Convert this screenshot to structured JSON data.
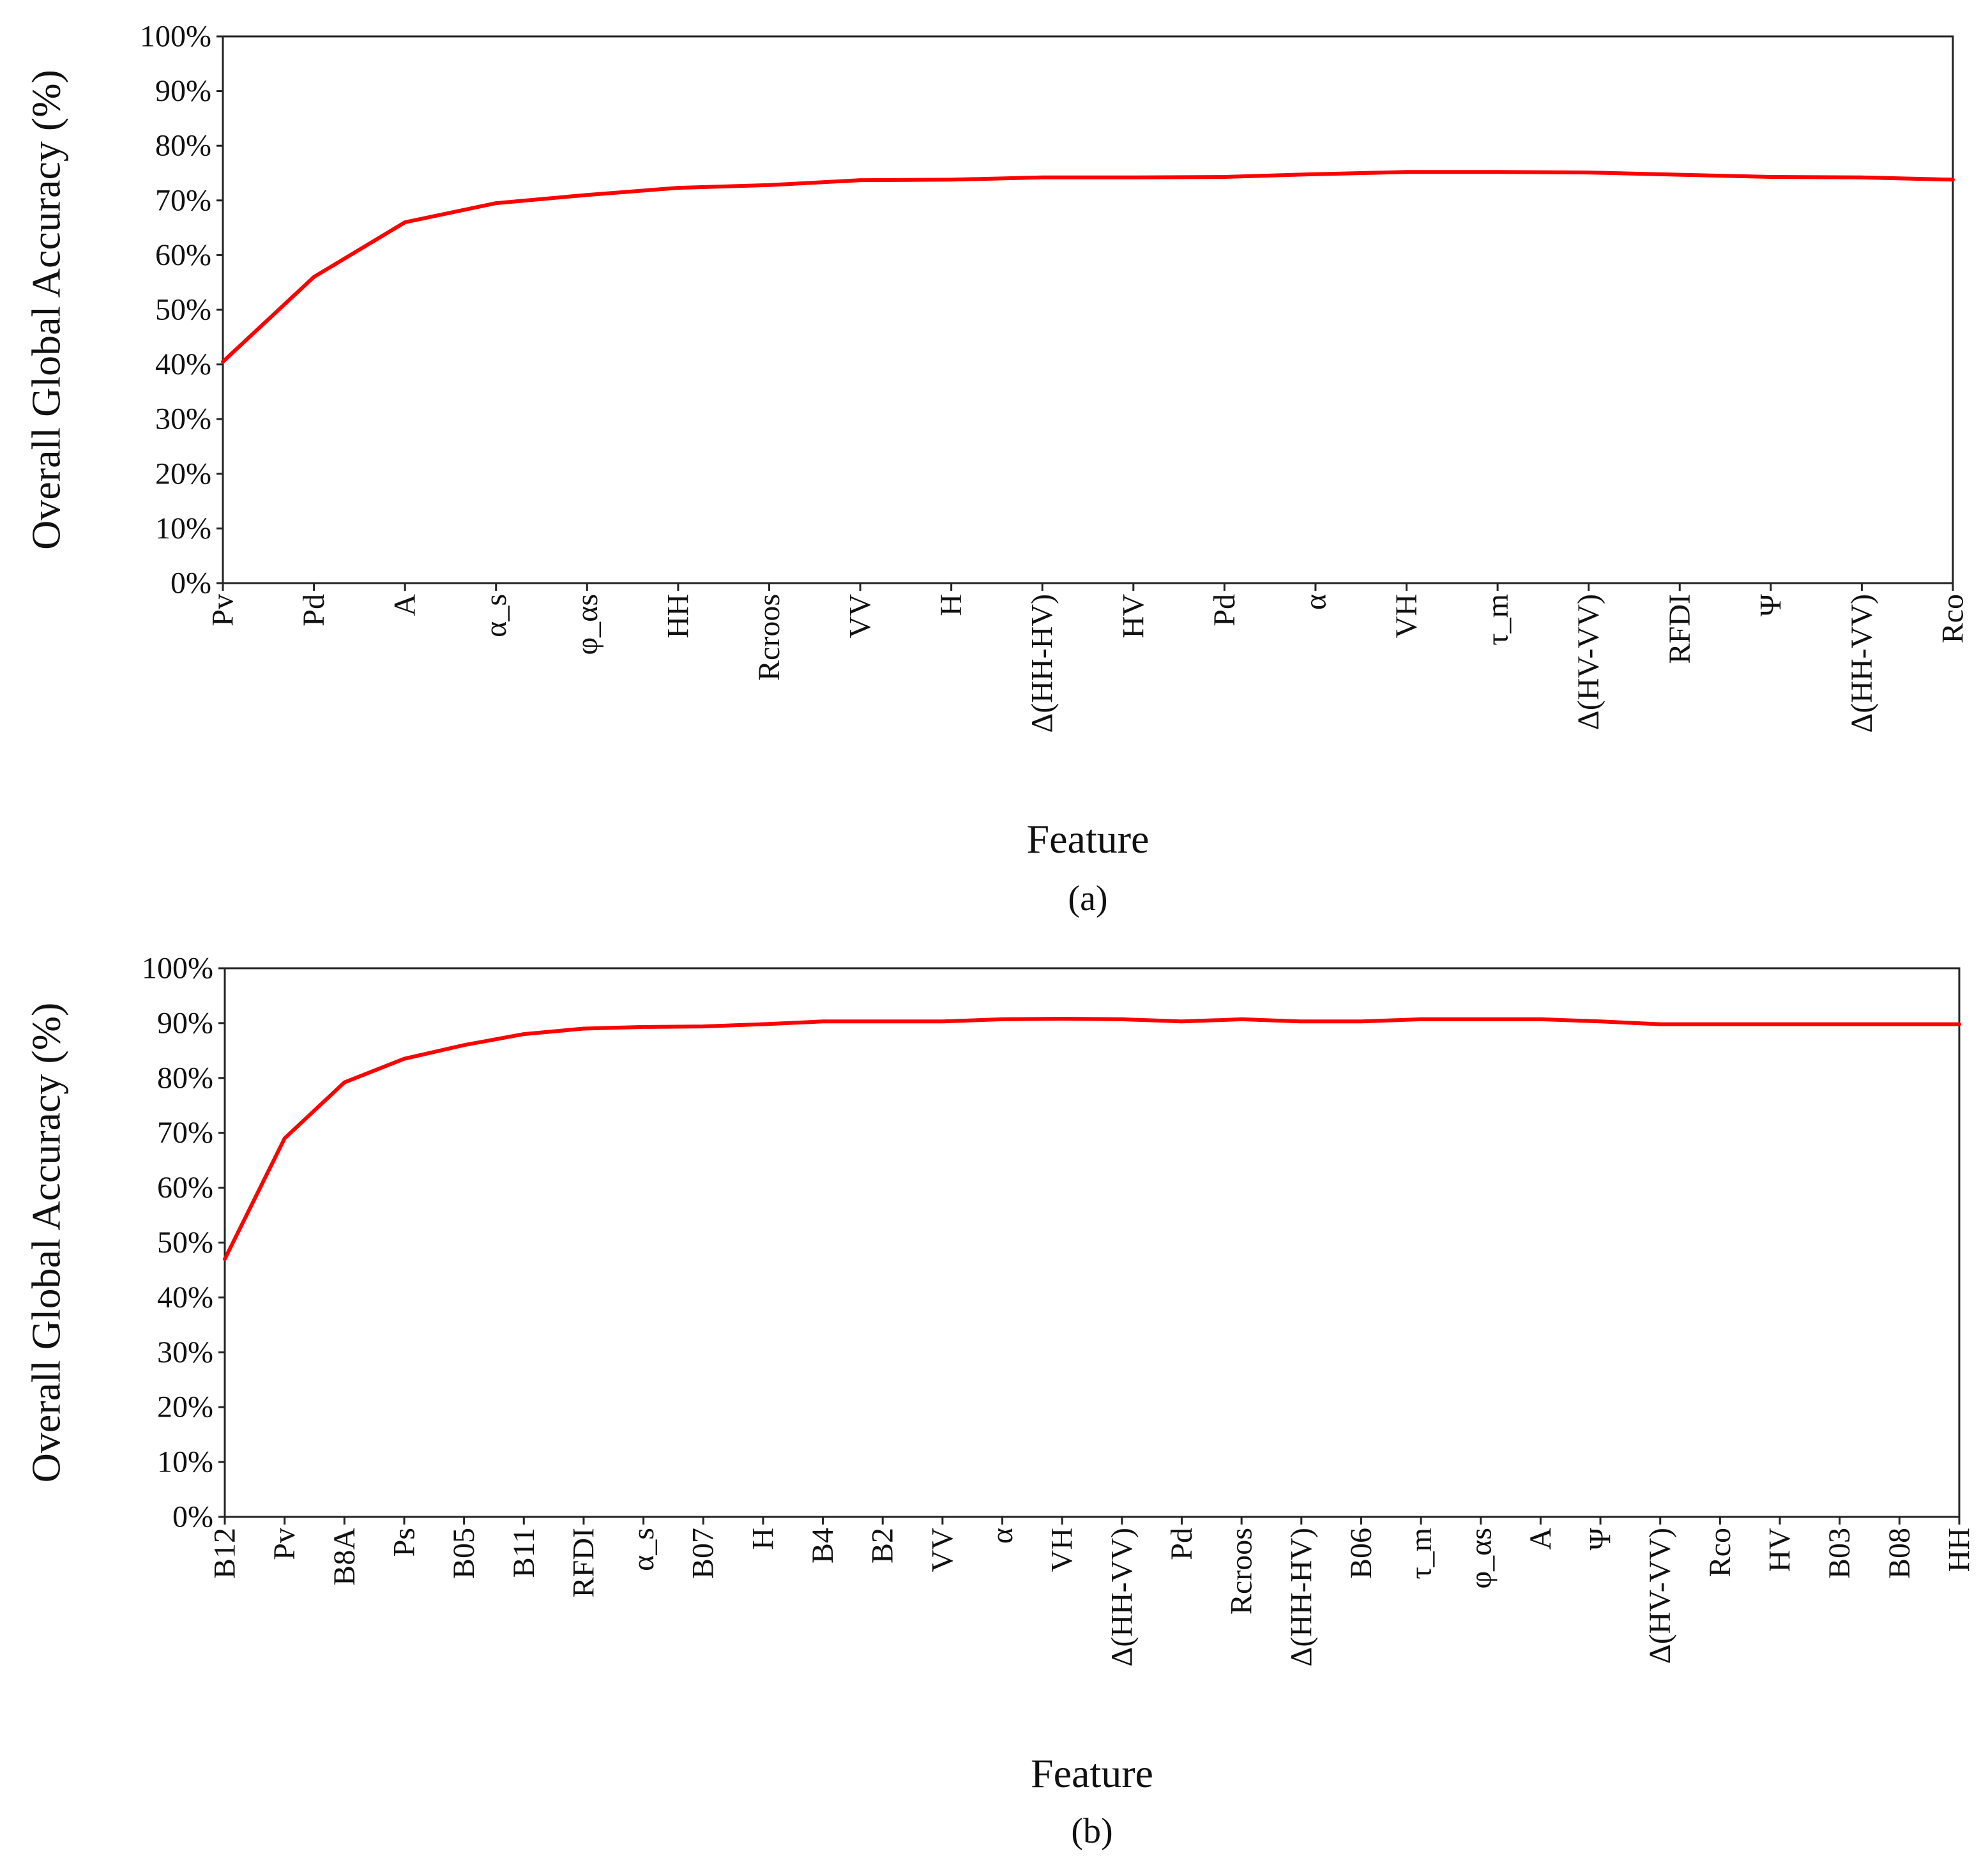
{
  "figure": {
    "line_color": "#ff0000"
  },
  "chart_data": [
    {
      "type": "line",
      "panel_label": "(a)",
      "xlabel": "Feature",
      "ylabel": "Overall Global Accuracy (%)",
      "ylim": [
        0,
        100
      ],
      "y_ticks": [
        "0%",
        "10%",
        "20%",
        "30%",
        "40%",
        "50%",
        "60%",
        "70%",
        "80%",
        "90%",
        "100%"
      ],
      "y_tick_values": [
        0,
        10,
        20,
        30,
        40,
        50,
        60,
        70,
        80,
        90,
        100
      ],
      "grid": false,
      "categories": [
        "Pv",
        "Pd",
        "A",
        "α_s",
        "φ_αs",
        "HH",
        "Rcroos",
        "VV",
        "H",
        "Δ(HH-HV)",
        "HV",
        "Pd",
        "α",
        "VH",
        "τ_m",
        "Δ(HV-VV)",
        "RFDI",
        "Ψ",
        "Δ(HH-VV)",
        "Rco"
      ],
      "values": [
        40.5,
        56,
        66,
        69.5,
        71,
        72.3,
        72.8,
        73.7,
        73.8,
        74.2,
        74.2,
        74.3,
        74.8,
        75.2,
        75.2,
        75.1,
        74.7,
        74.3,
        74.2,
        73.8
      ]
    },
    {
      "type": "line",
      "panel_label": "(b)",
      "xlabel": "Feature",
      "ylabel": "Overall Global Accuracy (%)",
      "ylim": [
        0,
        100
      ],
      "y_ticks": [
        "0%",
        "10%",
        "20%",
        "30%",
        "40%",
        "50%",
        "60%",
        "70%",
        "80%",
        "90%",
        "100%"
      ],
      "y_tick_values": [
        0,
        10,
        20,
        30,
        40,
        50,
        60,
        70,
        80,
        90,
        100
      ],
      "grid": false,
      "categories": [
        "B12",
        "Pv",
        "B8A",
        "Ps",
        "B05",
        "B11",
        "RFDI",
        "α_s",
        "B07",
        "H",
        "B4",
        "B2",
        "VV",
        "α",
        "VH",
        "Δ(HH-VV)",
        "Pd",
        "Rcroos",
        "Δ(HH-HV)",
        "B06",
        "τ_m",
        "φ_αs",
        "A",
        "Ψ",
        "Δ(HV-VV)",
        "Rco",
        "HV",
        "B03",
        "B08",
        "HH"
      ],
      "values": [
        47,
        69,
        79.2,
        83.5,
        86,
        88,
        89,
        89.3,
        89.4,
        89.8,
        90.3,
        90.3,
        90.3,
        90.7,
        90.8,
        90.7,
        90.3,
        90.7,
        90.3,
        90.3,
        90.7,
        90.7,
        90.7,
        90.3,
        89.8,
        89.8,
        89.8,
        89.8,
        89.8,
        89.8
      ]
    }
  ]
}
